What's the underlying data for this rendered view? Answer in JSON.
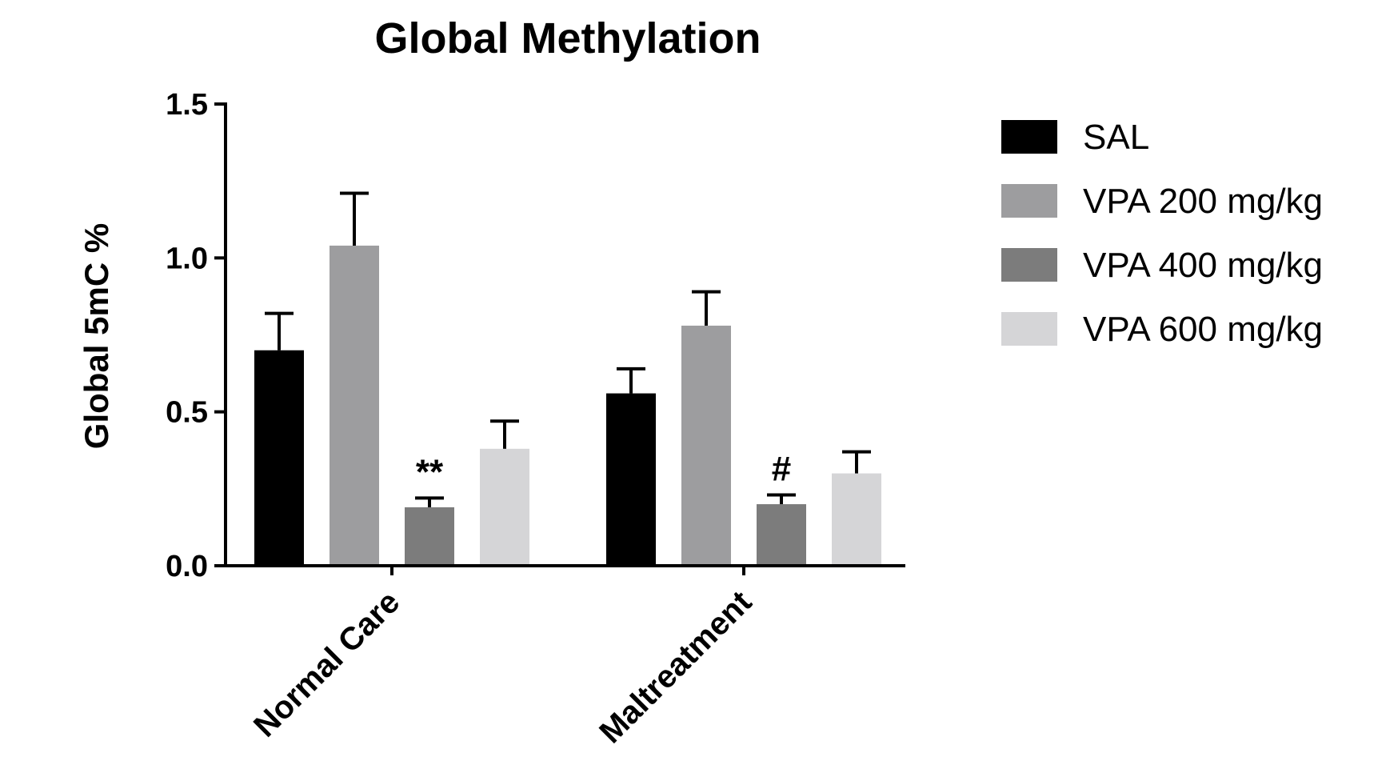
{
  "chart_data": {
    "type": "bar",
    "title": "Global Methylation",
    "xlabel": "",
    "ylabel": "Global 5mC %",
    "ylim": [
      0,
      1.5
    ],
    "yticks": [
      "0.0",
      "0.5",
      "1.0",
      "1.5"
    ],
    "ytick_values": [
      0,
      0.5,
      1.0,
      1.5
    ],
    "categories": [
      "Normal Care",
      "Maltreatment"
    ],
    "series": [
      {
        "name": "SAL",
        "color": "#000000",
        "values": [
          0.7,
          0.56
        ],
        "errors": [
          0.12,
          0.08
        ]
      },
      {
        "name": "VPA 200 mg/kg",
        "color": "#9d9d9f",
        "values": [
          1.04,
          0.78
        ],
        "errors": [
          0.17,
          0.11
        ]
      },
      {
        "name": "VPA 400 mg/kg",
        "color": "#7c7c7c",
        "values": [
          0.19,
          0.2
        ],
        "errors": [
          0.03,
          0.03
        ]
      },
      {
        "name": "VPA 600 mg/kg",
        "color": "#d5d5d7",
        "values": [
          0.38,
          0.3
        ],
        "errors": [
          0.09,
          0.07
        ]
      }
    ],
    "annotations": [
      {
        "text": "**",
        "category": 0,
        "series": 2
      },
      {
        "text": "#",
        "category": 1,
        "series": 2
      }
    ],
    "legend": "right",
    "grid": false
  }
}
